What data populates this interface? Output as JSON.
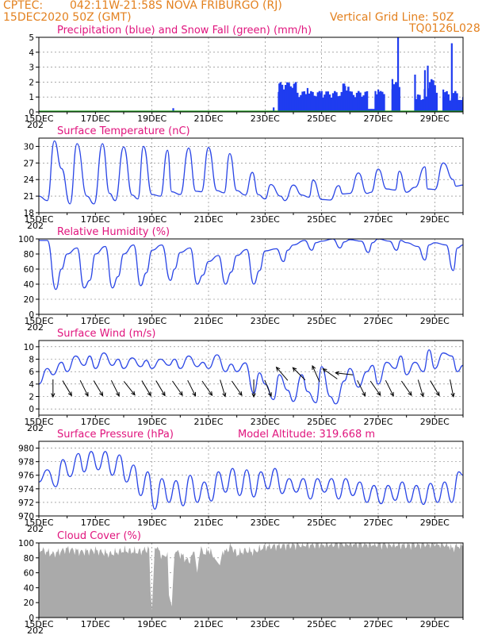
{
  "header": {
    "source": "CPTEC:",
    "location": "042:11W-21:58S  NOVA FRIBURGO (RJ)",
    "run_time": "15DEC2020 50Z (GMT)",
    "grid_note": "Vertical Grid Line: 50Z",
    "model": "TQ0126L028"
  },
  "x_axis": {
    "tick_labels": [
      "15DEC",
      "17DEC",
      "19DEC",
      "21DEC",
      "23DEC",
      "25DEC",
      "27DEC",
      "29DEC"
    ],
    "vertical_grid_days": [
      19,
      21,
      23,
      25,
      27,
      29
    ],
    "year_fragment": "202"
  },
  "colors": {
    "precip": "#1f3cf0",
    "snow": "#1aa01a",
    "line": "#2a46e6",
    "cloud": "#aaaaaa",
    "title": "#e0147d",
    "header": "#e3811f"
  },
  "chart_data": [
    {
      "type": "bar",
      "title": "Precipitation (blue) and Snow Fall (green) (mm/h)",
      "ylim": [
        0,
        5
      ],
      "yticks": [
        0,
        1,
        2,
        3,
        4,
        5
      ],
      "series": [
        {
          "name": "Precipitation",
          "values": [
            [
              19.75,
              0.25
            ],
            [
              23.3,
              0.3
            ],
            [
              23.5,
              1.9
            ],
            [
              24.0,
              1.1
            ],
            [
              24.5,
              1.6
            ],
            [
              25.0,
              1.4
            ],
            [
              25.4,
              1.2
            ],
            [
              25.8,
              1.9
            ],
            [
              26.2,
              0.9
            ],
            [
              26.5,
              0.6
            ],
            [
              26.9,
              1.4
            ],
            [
              27.0,
              1.5
            ],
            [
              27.15,
              0.3
            ],
            [
              27.5,
              2.2
            ],
            [
              27.7,
              5.0
            ],
            [
              28.3,
              2.5
            ],
            [
              28.65,
              2.8
            ],
            [
              28.75,
              3.1
            ],
            [
              28.95,
              1.7
            ],
            [
              29.3,
              1.5
            ],
            [
              29.6,
              4.6
            ],
            [
              30.0,
              1.0
            ]
          ]
        },
        {
          "name": "Snow Fall",
          "values": [
            [
              15,
              0
            ],
            [
              30,
              0
            ]
          ]
        }
      ]
    },
    {
      "type": "line",
      "title": "Surface Temperature (nC)",
      "ylim": [
        18,
        31.5
      ],
      "yticks": [
        18,
        21,
        24,
        27,
        30
      ],
      "x": [
        15,
        15.3,
        15.55,
        15.8,
        16.1,
        16.35,
        16.7,
        16.95,
        17.25,
        17.5,
        17.7,
        18.0,
        18.3,
        18.5,
        18.7,
        19.0,
        19.3,
        19.55,
        19.7,
        20.0,
        20.3,
        20.55,
        20.75,
        21.0,
        21.3,
        21.55,
        21.75,
        22.0,
        22.3,
        22.55,
        22.75,
        23.0,
        23.2,
        23.55,
        23.7,
        24.0,
        24.3,
        24.55,
        24.7,
        25.0,
        25.3,
        25.6,
        25.75,
        26.0,
        26.3,
        26.6,
        26.75,
        27.0,
        27.3,
        27.6,
        27.75,
        28.0,
        28.3,
        28.65,
        28.75,
        29.0,
        29.3,
        29.65,
        29.75,
        30.0
      ],
      "values": [
        21.0,
        20.2,
        31.0,
        26.0,
        19.6,
        30.5,
        21.0,
        19.6,
        30.5,
        21.5,
        20.2,
        29.9,
        21.2,
        20.5,
        30.0,
        21.3,
        21.0,
        29.3,
        21.8,
        21.3,
        29.7,
        21.9,
        21.8,
        29.8,
        22.0,
        21.6,
        28.7,
        22.0,
        21.2,
        25.3,
        21.3,
        20.5,
        23.1,
        21.0,
        20.2,
        23.0,
        21.2,
        20.8,
        23.9,
        20.4,
        20.3,
        22.9,
        21.4,
        21.5,
        25.2,
        21.5,
        21.7,
        25.9,
        22.3,
        22.1,
        25.5,
        21.7,
        22.6,
        26.3,
        22.3,
        22.2,
        27.0,
        24.0,
        22.8,
        23.0
      ]
    },
    {
      "type": "line",
      "title": "Relative Humidity (%)",
      "ylim": [
        0,
        100
      ],
      "yticks": [
        0,
        20,
        40,
        60,
        80,
        100
      ],
      "x": [
        15,
        15.3,
        15.6,
        15.8,
        16.0,
        16.35,
        16.6,
        16.8,
        17.0,
        17.35,
        17.6,
        17.8,
        18.0,
        18.35,
        18.6,
        18.8,
        19.0,
        19.35,
        19.65,
        19.8,
        20.0,
        20.35,
        20.6,
        20.8,
        21.0,
        21.35,
        21.6,
        21.8,
        22.0,
        22.35,
        22.6,
        22.8,
        23.0,
        23.4,
        23.65,
        23.8,
        24.0,
        24.4,
        24.65,
        24.8,
        25.0,
        25.4,
        25.65,
        25.8,
        26.0,
        26.4,
        26.65,
        26.8,
        27.0,
        27.4,
        27.65,
        27.8,
        28.0,
        28.4,
        28.65,
        28.8,
        29.0,
        29.4,
        29.65,
        29.8,
        30.0
      ],
      "values": [
        98,
        98,
        33,
        60,
        80,
        88,
        35,
        45,
        80,
        90,
        35,
        50,
        80,
        92,
        38,
        55,
        85,
        92,
        45,
        60,
        82,
        88,
        40,
        52,
        70,
        78,
        40,
        56,
        78,
        86,
        40,
        58,
        84,
        87,
        70,
        85,
        92,
        98,
        85,
        95,
        97,
        100,
        88,
        96,
        99,
        97,
        82,
        95,
        100,
        97,
        85,
        98,
        95,
        90,
        72,
        92,
        95,
        92,
        58,
        88,
        92
      ]
    },
    {
      "type": "line",
      "title": "Surface Wind (m/s)",
      "ylim": [
        -1,
        11
      ],
      "yticks": [
        0,
        2,
        4,
        6,
        8,
        10
      ],
      "x": [
        15,
        15.3,
        15.5,
        15.8,
        16.0,
        16.3,
        16.6,
        16.8,
        17.0,
        17.3,
        17.6,
        17.8,
        18.0,
        18.3,
        18.6,
        18.8,
        19.0,
        19.3,
        19.6,
        19.8,
        20.0,
        20.3,
        20.6,
        20.8,
        21.0,
        21.3,
        21.6,
        21.8,
        22.0,
        22.3,
        22.6,
        22.8,
        23.0,
        23.3,
        23.5,
        23.8,
        24.0,
        24.3,
        24.5,
        24.8,
        25.0,
        25.3,
        25.5,
        25.8,
        26.0,
        26.3,
        26.6,
        26.8,
        27.0,
        27.3,
        27.6,
        27.8,
        28.0,
        28.3,
        28.6,
        28.8,
        29.0,
        29.3,
        29.6,
        29.8,
        30.0
      ],
      "values": [
        4.0,
        6.5,
        5.5,
        7.5,
        6.0,
        8.5,
        7.0,
        8.5,
        6.5,
        9.0,
        7.0,
        8.0,
        6.5,
        8.2,
        6.8,
        7.8,
        6.5,
        8.0,
        7.0,
        8.0,
        6.5,
        8.5,
        6.8,
        7.5,
        6.5,
        8.7,
        6.0,
        7.2,
        6.0,
        7.4,
        2.5,
        5.8,
        4.0,
        1.5,
        5.5,
        3.0,
        1.2,
        5.5,
        2.8,
        1.0,
        6.8,
        2.0,
        0.8,
        4.5,
        6.5,
        3.5,
        6.0,
        7.0,
        4.0,
        7.5,
        6.5,
        8.5,
        5.5,
        7.5,
        6.0,
        9.5,
        6.5,
        9.0,
        8.5,
        6.0,
        7.0
      ]
    },
    {
      "type": "line",
      "title": "Surface Pressure (hPa)",
      "note": "Model Altitude: 319.668  m",
      "ylim": [
        970,
        981
      ],
      "yticks": [
        970,
        972,
        974,
        976,
        978,
        980
      ],
      "x": [
        15,
        15.3,
        15.6,
        15.85,
        16.1,
        16.4,
        16.6,
        16.85,
        17.1,
        17.35,
        17.6,
        17.85,
        18.1,
        18.35,
        18.6,
        18.85,
        19.1,
        19.35,
        19.6,
        19.85,
        20.1,
        20.35,
        20.6,
        20.85,
        21.1,
        21.35,
        21.6,
        21.85,
        22.1,
        22.35,
        22.6,
        22.85,
        23.1,
        23.35,
        23.6,
        23.85,
        24.1,
        24.35,
        24.6,
        24.85,
        25.1,
        25.35,
        25.6,
        25.85,
        26.1,
        26.35,
        26.6,
        26.85,
        27.1,
        27.35,
        27.6,
        27.85,
        28.1,
        28.35,
        28.6,
        28.85,
        29.1,
        29.35,
        29.6,
        29.85,
        30.0
      ],
      "values": [
        975.0,
        976.8,
        974.3,
        978.3,
        975.8,
        979.2,
        976.5,
        979.5,
        976.8,
        979.5,
        976.0,
        979.0,
        975.0,
        977.5,
        973.0,
        976.5,
        971.0,
        975.5,
        972.0,
        975.2,
        971.5,
        976.0,
        972.0,
        975.0,
        972.2,
        976.5,
        973.5,
        977.0,
        973.0,
        976.8,
        972.8,
        976.5,
        974.0,
        977.0,
        973.3,
        975.5,
        973.5,
        975.5,
        972.5,
        975.5,
        973.5,
        975.5,
        972.5,
        975.5,
        973.0,
        975.0,
        972.0,
        974.5,
        971.8,
        974.5,
        972.3,
        975.0,
        972.0,
        974.5,
        971.7,
        974.8,
        972.0,
        975.0,
        972.0,
        976.5,
        976.0
      ]
    },
    {
      "type": "area",
      "title": "Cloud Cover (%)",
      "ylim": [
        0,
        100
      ],
      "yticks": [
        0,
        20,
        40,
        60,
        80,
        100
      ],
      "x": [
        15,
        15.5,
        16.0,
        16.5,
        17.0,
        17.5,
        18.0,
        18.5,
        18.9,
        18.95,
        19.0,
        19.1,
        19.2,
        19.4,
        19.55,
        19.6,
        19.7,
        19.8,
        20.0,
        20.3,
        20.5,
        20.6,
        20.7,
        20.9,
        21.0,
        21.2,
        21.4,
        21.5,
        21.6,
        21.8,
        22.0,
        22.3,
        22.6,
        23.0,
        23.5,
        24.0,
        25.0,
        26.0,
        27.0,
        28.0,
        28.5,
        29.0,
        29.5,
        29.6,
        29.8,
        30.0
      ],
      "values": [
        92,
        85,
        92,
        88,
        90,
        85,
        90,
        88,
        92,
        35,
        10,
        95,
        92,
        80,
        88,
        30,
        15,
        90,
        85,
        75,
        88,
        60,
        92,
        85,
        92,
        80,
        70,
        90,
        88,
        96,
        85,
        90,
        88,
        95,
        96,
        97,
        98,
        99,
        98,
        97,
        98,
        99,
        97,
        92,
        96,
        96
      ]
    }
  ]
}
